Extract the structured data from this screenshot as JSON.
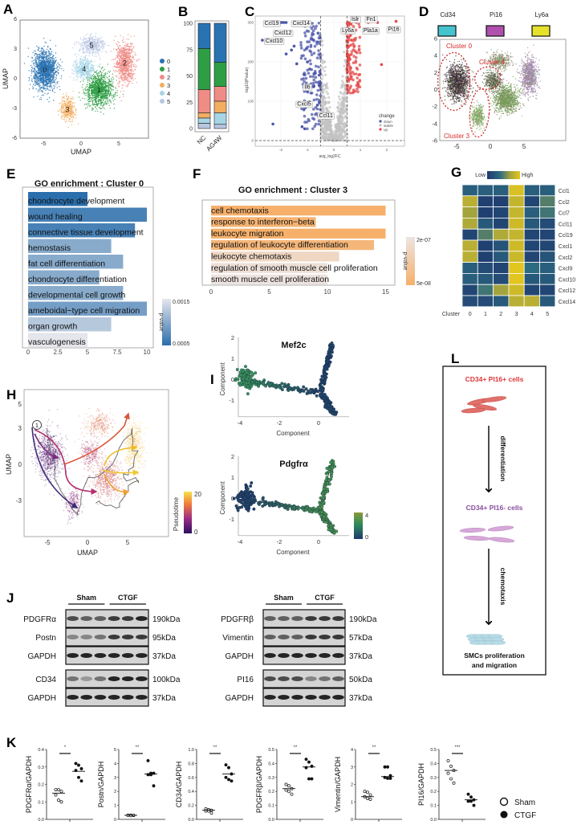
{
  "panel_labels": [
    "A",
    "B",
    "C",
    "D",
    "E",
    "F",
    "G",
    "H",
    "I",
    "J",
    "K",
    "L"
  ],
  "chart_data": [
    {
      "panel": "A",
      "type": "scatter",
      "xlabel": "UMAP",
      "ylabel": "UMAP",
      "xticks": [
        "-5",
        "0",
        "5"
      ],
      "yticks": [
        "6",
        "3",
        "0",
        "-3",
        "-6"
      ],
      "legend": [
        "0",
        "1",
        "2",
        "3",
        "4",
        "5"
      ],
      "cluster_colors": [
        "#2a73b3",
        "#2e9e44",
        "#ef8c86",
        "#f3ae62",
        "#a7d5e6",
        "#b8c6e2"
      ],
      "cluster_centers": [
        [
          -4.8,
          0.8
        ],
        [
          2.4,
          -1.2
        ],
        [
          5.8,
          1.5
        ],
        [
          -1.8,
          -3.2
        ],
        [
          0.4,
          0.9
        ],
        [
          1.4,
          3.3
        ]
      ]
    },
    {
      "panel": "B",
      "type": "bar",
      "stacked": true,
      "categories": [
        "NC",
        "AG4W"
      ],
      "series": [
        {
          "name": "0",
          "values": [
            24,
            37
          ]
        },
        {
          "name": "1",
          "values": [
            39,
            23
          ]
        },
        {
          "name": "2",
          "values": [
            22,
            14
          ]
        },
        {
          "name": "3",
          "values": [
            5,
            11
          ]
        },
        {
          "name": "4",
          "values": [
            5,
            11
          ]
        },
        {
          "name": "5",
          "values": [
            5,
            4
          ]
        }
      ],
      "yticks": [
        "0",
        "25",
        "50",
        "75",
        "100"
      ],
      "ylim": [
        0,
        100
      ]
    },
    {
      "panel": "C",
      "type": "scatter",
      "xlabel": "avg_log2FC",
      "ylabel": "-log10(Pvalue)",
      "xticks": [
        "-2",
        "-1",
        "0",
        "1",
        "2"
      ],
      "yticks": [
        "0",
        "100",
        "200",
        "300"
      ],
      "xlim": [
        -3,
        2.7
      ],
      "ylim": [
        -15,
        320
      ],
      "thresholds": {
        "log2fc": [
          -0.5,
          0.5
        ]
      },
      "legend_title": "change",
      "legend": [
        {
          "label": "down",
          "color": "#4b56a8"
        },
        {
          "label": "stable",
          "color": "#c3c3c3"
        },
        {
          "label": "up",
          "color": "#e54848"
        }
      ],
      "labeled_genes": [
        {
          "gene": "Ccl19",
          "x": -1.95,
          "y": 300
        },
        {
          "gene": "Cxcl14",
          "x": -1.8,
          "y": 300
        },
        {
          "gene": "Cxcl12",
          "x": -1.88,
          "y": 300
        },
        {
          "gene": "Cxcl10",
          "x": -2.7,
          "y": 255
        },
        {
          "gene": "Il6",
          "x": -0.75,
          "y": 138
        },
        {
          "gene": "Cxcl5",
          "x": -0.9,
          "y": 97
        },
        {
          "gene": "Ccl11",
          "x": -0.62,
          "y": 90
        },
        {
          "gene": "Ly6a",
          "x": 0.55,
          "y": 300
        },
        {
          "gene": "Islr",
          "x": 0.85,
          "y": 300
        },
        {
          "gene": "Pla1a",
          "x": 1.3,
          "y": 300
        },
        {
          "gene": "Fn1",
          "x": 1.65,
          "y": 300
        },
        {
          "gene": "Pi16",
          "x": 2.35,
          "y": 303
        }
      ]
    },
    {
      "panel": "D",
      "type": "scatter",
      "legend": [
        {
          "label": "Cd34",
          "color": "#45c3cf"
        },
        {
          "label": "Pi16",
          "color": "#b04fae"
        },
        {
          "label": "Ly6a",
          "color": "#e6e22c"
        }
      ],
      "xticks": [
        "-5",
        "0",
        "5"
      ],
      "yticks": [
        "6",
        "4",
        "2",
        "0",
        "-2",
        "-4",
        "-6"
      ],
      "annotations": [
        "Cluster 0",
        "Cluster 4",
        "Cluster 3"
      ]
    },
    {
      "panel": "E",
      "type": "bar",
      "orientation": "horizontal",
      "title": "GO enrichment : Cluster 0",
      "categories": [
        "chondrocyte development",
        "wound healing",
        "connective tissue development",
        "hemostasis",
        "fat cell differentiation",
        "chondrocyte differentiation",
        "developmental cell growth",
        "ameboidal−type cell migration",
        "organ growth",
        "vasculogenesis"
      ],
      "values": [
        5,
        10,
        9,
        7,
        8,
        6,
        8,
        10,
        7,
        5
      ],
      "pvalues": [
        0.0005,
        0.0006,
        0.0006,
        0.0009,
        0.0009,
        0.0009,
        0.0009,
        0.0008,
        0.0012,
        0.0017
      ],
      "xticks": [
        "0",
        "2.5",
        "5",
        "7.5",
        "10"
      ],
      "xlim": [
        0,
        10.5
      ],
      "legend_title": "p-value",
      "legend_ticks": [
        "0.0015",
        "0.0005"
      ]
    },
    {
      "panel": "F",
      "type": "bar",
      "orientation": "horizontal",
      "title": "GO enrichment : Cluster 3",
      "categories": [
        "cell chemotaxis",
        "response to interferon−beta",
        "leukocyte migration",
        "regulation of leukocyte differentiation",
        "leukocyte chemotaxis",
        "regulation of smooth muscle cell proliferation",
        "smooth muscle cell proliferation"
      ],
      "values": [
        15,
        9,
        15,
        14,
        11,
        10,
        10
      ],
      "pvalues": [
        5e-08,
        5.5e-08,
        5e-08,
        6e-08,
        1.5e-07,
        1.9e-07,
        2.1e-07
      ],
      "xticks": [
        "0",
        "5",
        "10",
        "15"
      ],
      "xlim": [
        0,
        16
      ],
      "legend_title": "p-value",
      "legend_ticks": [
        "2e-07",
        "5e-08"
      ]
    },
    {
      "panel": "G",
      "type": "heatmap",
      "rows": [
        "Ccl1",
        "Ccl2",
        "Ccl7",
        "Ccl11",
        "Ccl19",
        "Cxcl1",
        "Cxcl2",
        "Cxcl9",
        "Cxcl10",
        "Cxcl12",
        "Cxcl14"
      ],
      "column_title": "Cluster",
      "columns": [
        "0",
        "1",
        "2",
        "3",
        "4",
        "5"
      ],
      "values": [
        [
          0.3,
          0.3,
          0.3,
          0.95,
          0.3,
          0.3
        ],
        [
          0.8,
          0.05,
          0.05,
          0.85,
          0.1,
          0.5
        ],
        [
          0.7,
          0.05,
          0.1,
          0.85,
          0.3,
          0.45
        ],
        [
          0.75,
          0.25,
          0.1,
          0.9,
          0.25,
          0.15
        ],
        [
          0.1,
          0.5,
          0.75,
          0.85,
          0.1,
          0.1
        ],
        [
          0.8,
          0.05,
          0.2,
          0.9,
          0.1,
          0.1
        ],
        [
          0.8,
          0.05,
          0.25,
          0.88,
          0.1,
          0.2
        ],
        [
          0.3,
          0.15,
          0.1,
          1.0,
          0.4,
          0.3
        ],
        [
          0.3,
          0.25,
          0.15,
          1.0,
          0.25,
          0.25
        ],
        [
          0.1,
          0.45,
          0.7,
          0.9,
          0.1,
          0.1
        ],
        [
          0.15,
          0.15,
          0.25,
          0.8,
          0.8,
          0.25
        ]
      ],
      "legend_low": "Low",
      "legend_high": "High"
    },
    {
      "panel": "H",
      "type": "scatter",
      "xlabel": "UMAP",
      "ylabel": "UMAP",
      "xticks": [
        "-5",
        "0",
        "5"
      ],
      "yticks": [
        "5",
        "3",
        "0",
        "-3"
      ],
      "colorbar_title": "Pseudotime",
      "colorbar_ticks": [
        "20",
        "0"
      ],
      "colorbar_range": [
        0,
        20
      ],
      "root_label": "1"
    },
    {
      "panel": "I",
      "type": "scatter",
      "title": "Mef2c",
      "xlabel": "Component",
      "ylabel": "Component",
      "xticks": [
        "-4",
        "-2",
        "0"
      ],
      "yticks": [
        "2",
        "1",
        "0",
        "-1"
      ]
    },
    {
      "panel": "I",
      "type": "scatter",
      "title": "Pdgfrα",
      "xlabel": "Component",
      "ylabel": "Component",
      "xticks": [
        "-4",
        "-2",
        "0"
      ],
      "yticks": [
        "2",
        "1",
        "0",
        "-1"
      ],
      "colorbar_ticks": [
        "4",
        "0"
      ],
      "colorbar_range": [
        0,
        4
      ]
    },
    {
      "panel": "K",
      "type": "scatter",
      "legend": [
        "Sham",
        "CTGF"
      ],
      "plots": [
        {
          "ylabel": "PDGFRα/GAPDH",
          "yticks": [
            "0.0",
            "0.1",
            "0.2",
            "0.3",
            "0.4"
          ],
          "ylim": [
            0,
            0.4
          ],
          "significance": "*",
          "sham": [
            0.17,
            0.17,
            0.16,
            0.14,
            0.11,
            0.1
          ],
          "ctgf": [
            0.32,
            0.31,
            0.29,
            0.28,
            0.24,
            0.22
          ],
          "sham_mean": 0.15,
          "ctgf_mean": 0.275
        },
        {
          "ylabel": "Postn/GAPDH",
          "yticks": [
            "0",
            "1",
            "2",
            "3",
            "4",
            "5"
          ],
          "ylim": [
            0,
            5
          ],
          "significance": "**",
          "sham": [
            0.3,
            0.3,
            0.28,
            0.28,
            0.27,
            0.3
          ],
          "ctgf": [
            4.2,
            3.3,
            3.3,
            3.2,
            3.2,
            2.4
          ],
          "sham_mean": 0.29,
          "ctgf_mean": 3.25
        },
        {
          "ylabel": "CD34/GAPDH",
          "yticks": [
            "0.0",
            "0.2",
            "0.4",
            "0.6",
            "0.8",
            "1.0"
          ],
          "ylim": [
            0,
            1
          ],
          "significance": "**",
          "sham": [
            0.15,
            0.14,
            0.13,
            0.12,
            0.12,
            0.09
          ],
          "ctgf": [
            0.78,
            0.74,
            0.65,
            0.6,
            0.57,
            0.55
          ],
          "sham_mean": 0.13,
          "ctgf_mean": 0.65
        },
        {
          "ylabel": "PDGFRβ/GAPDH",
          "yticks": [
            "0.0",
            "0.1",
            "0.2",
            "0.3",
            "0.4",
            "0.5"
          ],
          "ylim": [
            0,
            0.5
          ],
          "significance": "**",
          "sham": [
            0.25,
            0.24,
            0.22,
            0.21,
            0.2,
            0.18
          ],
          "ctgf": [
            0.43,
            0.41,
            0.38,
            0.37,
            0.29,
            0.29
          ],
          "sham_mean": 0.22,
          "ctgf_mean": 0.375
        },
        {
          "ylabel": "Vimentin/GAPDH",
          "yticks": [
            "0",
            "1",
            "2",
            "3",
            "4"
          ],
          "ylim": [
            0,
            4
          ],
          "significance": "**",
          "sham": [
            1.6,
            1.55,
            1.4,
            1.3,
            1.2,
            1.15
          ],
          "ctgf": [
            3.0,
            3.0,
            2.5,
            2.4,
            2.35,
            2.35
          ],
          "sham_mean": 1.3,
          "ctgf_mean": 2.45
        },
        {
          "ylabel": "PI16/GAPDH",
          "yticks": [
            "0.0",
            "0.1",
            "0.2",
            "0.3",
            "0.4",
            "0.5"
          ],
          "ylim": [
            0,
            0.5
          ],
          "significance": "***",
          "sham": [
            0.42,
            0.38,
            0.35,
            0.33,
            0.29,
            0.26
          ],
          "ctgf": [
            0.18,
            0.16,
            0.14,
            0.13,
            0.13,
            0.1
          ],
          "sham_mean": 0.35,
          "ctgf_mean": 0.14
        }
      ]
    }
  ],
  "western_blot": {
    "panel": "J",
    "groups": [
      "Sham",
      "CTGF"
    ],
    "left": [
      [
        {
          "protein": "PDGFRα",
          "size": "190kDa"
        },
        {
          "protein": "Postn",
          "size": "95kDa"
        },
        {
          "protein": "GAPDH",
          "size": "37kDa"
        }
      ],
      [
        {
          "protein": "CD34",
          "size": "100kDa"
        },
        {
          "protein": "GAPDH",
          "size": "37kDa"
        }
      ]
    ],
    "right": [
      [
        {
          "protein": "PDGFRβ",
          "size": "190kDa"
        },
        {
          "protein": "Vimentin",
          "size": "57kDa"
        },
        {
          "protein": "GAPDH",
          "size": "37kDa"
        }
      ],
      [
        {
          "protein": "PI16",
          "size": "50kDa"
        },
        {
          "protein": "GAPDH",
          "size": "37kDa"
        }
      ]
    ]
  },
  "schematic": {
    "panel": "L",
    "top_cells": "CD34+ PI16+ cells",
    "step1": "differentiation",
    "middle_cells": "CD34+ PI16- cells",
    "step2": "chemotaxis",
    "outcome_line1": "SMCs proliferation",
    "outcome_line2": "and migration",
    "colors": {
      "top": "#e0383a",
      "middle": "#8a4fa0",
      "outcome": "#111111"
    }
  }
}
